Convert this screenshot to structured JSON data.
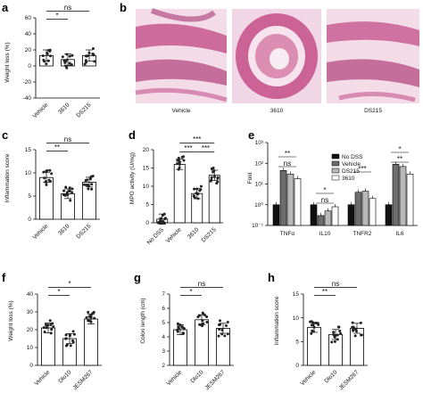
{
  "panels": {
    "a": {
      "letter": "a",
      "ylabel": "Weight loss (%)",
      "yticks": [
        "60",
        "40",
        "20",
        "0",
        "-20",
        "-40"
      ],
      "categories": [
        "Vehicle",
        "3610",
        "DS215"
      ],
      "sig": [
        "*",
        "ns"
      ]
    },
    "b": {
      "letter": "b",
      "captions": [
        "Vehicle",
        "3610",
        "DS215"
      ]
    },
    "c": {
      "letter": "c",
      "ylabel": "Inflammation score",
      "yticks": [
        "15",
        "10",
        "5",
        "0"
      ],
      "categories": [
        "Vehicle",
        "3610",
        "DS215"
      ],
      "sig": [
        "**",
        "ns"
      ]
    },
    "d": {
      "letter": "d",
      "ylabel": "MPO activity (U/mg)",
      "yticks": [
        "20",
        "15",
        "10",
        "5",
        "0"
      ],
      "categories": [
        "No DSS",
        "Vehicle",
        "3610",
        "DS215"
      ],
      "sig": [
        "***",
        "***",
        "***"
      ]
    },
    "e": {
      "letter": "e",
      "ylabel": "Fold",
      "yticks": [
        "10³",
        "10²",
        "10¹",
        "10⁰",
        "10⁻¹"
      ],
      "groups": [
        "TNFα",
        "IL10",
        "TNFR2",
        "IL6"
      ],
      "legend": [
        "No DSS",
        "Vehicle",
        "DS215",
        "3610"
      ],
      "sig": [
        "**",
        "ns",
        "*",
        "ns",
        "***",
        "*",
        "**"
      ]
    },
    "f": {
      "letter": "f",
      "ylabel": "Weight loss (%)",
      "yticks": [
        "40",
        "30",
        "20",
        "10",
        "0"
      ],
      "categories": [
        "Vehicle",
        "Dlo10",
        "JESM267"
      ],
      "sig": [
        "*",
        "*"
      ]
    },
    "g": {
      "letter": "g",
      "ylabel": "Colon length (cm)",
      "yticks": [
        "7",
        "6",
        "5",
        "4",
        "3",
        "2"
      ],
      "categories": [
        "Vehicle",
        "Dlo10",
        "JESM267"
      ],
      "sig": [
        "*",
        "ns"
      ]
    },
    "h": {
      "letter": "h",
      "ylabel": "Inflammation score",
      "yticks": [
        "15",
        "10",
        "5",
        "0"
      ],
      "categories": [
        "Vehicle",
        "Dlo10",
        "JESM267"
      ],
      "sig": [
        "**",
        "ns"
      ]
    }
  },
  "chart_data": [
    {
      "type": "bar",
      "panel": "a",
      "categories": [
        "Vehicle",
        "3610",
        "DS215"
      ],
      "values": [
        13,
        8,
        13
      ],
      "ylabel": "Weight loss (%)",
      "ylim": [
        -40,
        60
      ]
    },
    {
      "type": "bar",
      "panel": "c",
      "categories": [
        "Vehicle",
        "3610",
        "DS215"
      ],
      "values": [
        9,
        5.5,
        8
      ],
      "ylabel": "Inflammation score",
      "ylim": [
        0,
        15
      ]
    },
    {
      "type": "bar",
      "panel": "d",
      "categories": [
        "No DSS",
        "Vehicle",
        "3610",
        "DS215"
      ],
      "values": [
        1,
        16,
        8,
        13
      ],
      "ylabel": "MPO activity (U/mg)",
      "ylim": [
        0,
        20
      ]
    },
    {
      "type": "bar",
      "panel": "e",
      "categories": [
        "TNFα",
        "IL10",
        "TNFR2",
        "IL6"
      ],
      "series": [
        {
          "name": "No DSS",
          "values": [
            1,
            1,
            1,
            1
          ]
        },
        {
          "name": "Vehicle",
          "values": [
            45,
            0.3,
            4,
            90
          ]
        },
        {
          "name": "DS215",
          "values": [
            30,
            0.5,
            4.5,
            70
          ]
        },
        {
          "name": "3610",
          "values": [
            18,
            0.8,
            2,
            30
          ]
        }
      ],
      "ylabel": "Fold",
      "yscale": "log",
      "ylim": [
        0.1,
        1000
      ]
    },
    {
      "type": "bar",
      "panel": "f",
      "categories": [
        "Vehicle",
        "Dlo10",
        "JESM267"
      ],
      "values": [
        21,
        15,
        26
      ],
      "ylabel": "Weight loss (%)",
      "ylim": [
        0,
        40
      ]
    },
    {
      "type": "bar",
      "panel": "g",
      "categories": [
        "Vehicle",
        "Dlo10",
        "JESM267"
      ],
      "values": [
        4.5,
        5.2,
        4.6
      ],
      "ylabel": "Colon length (cm)",
      "ylim": [
        2,
        7
      ]
    },
    {
      "type": "bar",
      "panel": "h",
      "categories": [
        "Vehicle",
        "Dlo10",
        "JESM267"
      ],
      "values": [
        8,
        6.5,
        7.8
      ],
      "ylabel": "Inflammation score",
      "ylim": [
        0,
        15
      ]
    }
  ],
  "colors": {
    "bar_fill": "#ffffff",
    "axis": "#000000",
    "dot": "#222222",
    "tissue": "#c44f8a",
    "tissue_bg": "#f3dce8",
    "ns_dss": "#111111",
    "vehicle": "#6d6d6d",
    "ds215": "#b8b8b8",
    "c3610": "#ffffff"
  }
}
